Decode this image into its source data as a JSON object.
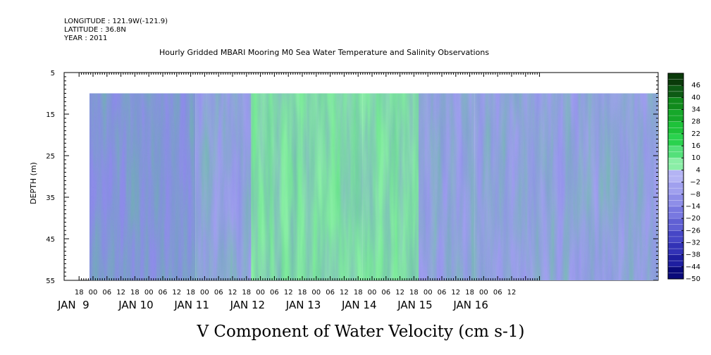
{
  "header": {
    "longitude": "LONGITUDE : 121.9W(-121.9)",
    "latitude": "LATITUDE : 36.8N",
    "year": "YEAR : 2011"
  },
  "chart_data": {
    "type": "heatmap",
    "title": "Hourly Gridded MBARI Mooring M0 Sea Water Temperature and Salinity Observations",
    "xlabel": "",
    "ylabel": "DEPTH (m)",
    "colorbar_label": "V Component of Water Velocity (cm s-1)",
    "y_ticks": [
      "5",
      "15",
      "25",
      "35",
      "45",
      "55"
    ],
    "ylim": [
      55,
      5
    ],
    "data_depth_range": [
      10,
      55
    ],
    "x_hour_ticks": [
      "18",
      "00",
      "06",
      "12",
      "18",
      "00",
      "06",
      "12",
      "18",
      "00",
      "06",
      "12",
      "18",
      "00",
      "06",
      "12",
      "18",
      "00",
      "06",
      "12",
      "18",
      "00",
      "06",
      "12",
      "18",
      "00",
      "06",
      "12",
      "18",
      "00",
      "06",
      "12"
    ],
    "x_day_labels": [
      "JAN  9",
      "JAN 10",
      "JAN 11",
      "JAN 12",
      "JAN 13",
      "JAN 14",
      "JAN 15",
      "JAN 16"
    ],
    "colorbar_levels": [
      46,
      40,
      34,
      28,
      22,
      16,
      10,
      4,
      -2,
      -8,
      -14,
      -20,
      -26,
      -32,
      -38,
      -44,
      -50
    ],
    "colorbar_colors": [
      "#0a3a0a",
      "#0d5a14",
      "#108a1c",
      "#16a82a",
      "#1ec23a",
      "#2ad24e",
      "#54e07a",
      "#8aeea6",
      "#b4b4f4",
      "#a0a0ee",
      "#8e8ee8",
      "#7878e0",
      "#6060d4",
      "#4646c6",
      "#3232b6",
      "#1e1ea0",
      "#0a0a7a"
    ],
    "velocity_by_day": [
      {
        "day": "JAN  9",
        "v": -12
      },
      {
        "day": "JAN 10",
        "v": -10
      },
      {
        "day": "JAN 11",
        "v": -6
      },
      {
        "day": "JAN 12",
        "v": 6
      },
      {
        "day": "JAN 13",
        "v": 8
      },
      {
        "day": "JAN 14",
        "v": 6
      },
      {
        "day": "JAN 15",
        "v": -6
      },
      {
        "day": "JAN 16",
        "v": -4
      }
    ]
  }
}
